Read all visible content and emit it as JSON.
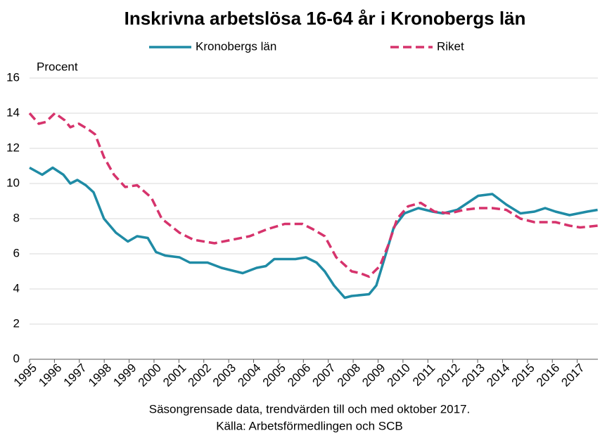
{
  "chart_data": {
    "type": "line",
    "title": "Inskrivna arbetslösa 16-64 år i Kronobergs län",
    "y_label": "Procent",
    "notes": [
      "Säsongrensade data, trendvärden till och med oktober 2017.",
      "Källa: Arbetsförmedlingen och SCB"
    ],
    "series": [
      {
        "name": "Kronobergs län",
        "color": "#1f8ba5",
        "linestyle": "solid",
        "x": [
          1995.0,
          1995.51,
          1995.93,
          1996.36,
          1996.64,
          1996.92,
          1997.26,
          1997.57,
          1997.99,
          1998.47,
          1998.95,
          1999.32,
          1999.75,
          2000.08,
          2000.45,
          2001.02,
          2001.44,
          2002.15,
          2002.71,
          2003.56,
          2004.12,
          2004.49,
          2004.83,
          2005.68,
          2006.1,
          2006.53,
          2006.86,
          2007.23,
          2007.66,
          2007.94,
          2008.64,
          2008.93,
          2009.21,
          2009.63,
          2010.06,
          2010.62,
          2011.19,
          2011.61,
          2012.18,
          2012.6,
          2013.02,
          2013.59,
          2014.15,
          2014.72,
          2015.28,
          2015.71,
          2016.13,
          2016.69,
          2017.4,
          2017.82
        ],
        "values": [
          10.9,
          10.5,
          10.9,
          10.5,
          10.0,
          10.2,
          9.9,
          9.5,
          8.0,
          7.2,
          6.7,
          7.0,
          6.9,
          6.1,
          5.9,
          5.8,
          5.5,
          5.5,
          5.2,
          4.9,
          5.2,
          5.3,
          5.7,
          5.7,
          5.8,
          5.5,
          5.0,
          4.2,
          3.5,
          3.6,
          3.7,
          4.2,
          5.5,
          7.5,
          8.3,
          8.6,
          8.4,
          8.3,
          8.5,
          8.9,
          9.3,
          9.4,
          8.8,
          8.3,
          8.4,
          8.6,
          8.4,
          8.2,
          8.4,
          8.5
        ]
      },
      {
        "name": "Riket",
        "color": "#d6336c",
        "linestyle": "dashed",
        "x": [
          1995.0,
          1995.37,
          1995.65,
          1996.02,
          1996.41,
          1996.64,
          1996.98,
          1997.34,
          1997.63,
          1997.99,
          1998.39,
          1998.84,
          1999.32,
          1999.89,
          2000.31,
          2001.02,
          2001.58,
          2002.43,
          2003.14,
          2003.84,
          2004.55,
          2005.25,
          2005.96,
          2006.38,
          2006.86,
          2007.32,
          2007.94,
          2008.28,
          2008.64,
          2009.07,
          2009.41,
          2009.77,
          2010.2,
          2010.71,
          2011.27,
          2011.88,
          2012.45,
          2013.02,
          2013.59,
          2014.15,
          2014.72,
          2015.28,
          2016.13,
          2016.69,
          2017.12,
          2017.82
        ],
        "values": [
          14.0,
          13.4,
          13.5,
          14.0,
          13.6,
          13.2,
          13.4,
          13.1,
          12.8,
          11.5,
          10.5,
          9.8,
          9.9,
          9.2,
          8.0,
          7.2,
          6.8,
          6.6,
          6.8,
          7.0,
          7.4,
          7.7,
          7.7,
          7.4,
          7.0,
          5.8,
          5.0,
          4.9,
          4.7,
          5.3,
          6.5,
          8.0,
          8.7,
          8.9,
          8.4,
          8.3,
          8.5,
          8.6,
          8.6,
          8.5,
          8.0,
          7.8,
          7.8,
          7.6,
          7.5,
          7.6
        ]
      }
    ],
    "xlim": [
      1995,
      2017.83
    ],
    "xticks": [
      1995,
      1996,
      1997,
      1998,
      1999,
      2000,
      2001,
      2002,
      2003,
      2004,
      2005,
      2006,
      2007,
      2008,
      2009,
      2010,
      2011,
      2012,
      2013,
      2014,
      2015,
      2016,
      2017
    ],
    "ylim": [
      0,
      16
    ],
    "yticks": [
      0,
      2,
      4,
      6,
      8,
      10,
      12,
      14,
      16
    ],
    "grid": true
  }
}
